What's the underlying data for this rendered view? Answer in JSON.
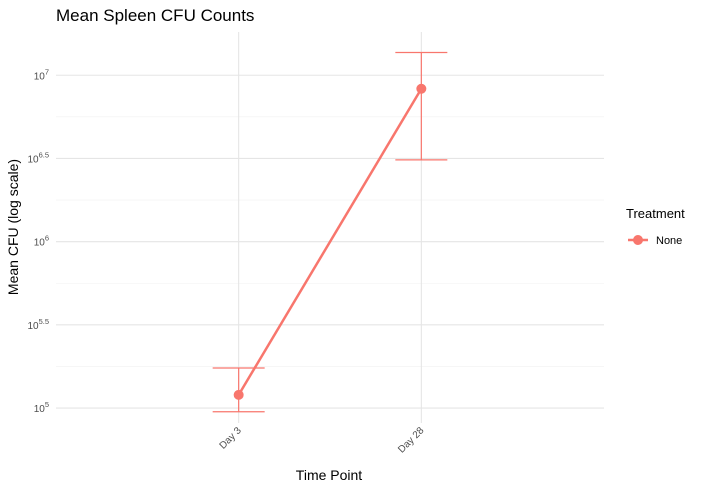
{
  "chart_data": {
    "type": "line",
    "title": "Mean Spleen CFU Counts",
    "xlabel": "Time Point",
    "ylabel": "Mean CFU (log scale)",
    "y_scale": "log10",
    "categories": [
      "Day 3",
      "Day 28"
    ],
    "series": [
      {
        "name": "None",
        "color": "#F8766D",
        "values": [
          120000,
          8300000
        ],
        "error_low": [
          95000,
          3100000
        ],
        "error_high": [
          174000,
          13700000
        ]
      }
    ],
    "ylim_log10": [
      4.91,
      7.26
    ],
    "y_ticks": [
      {
        "base": "10",
        "exp": "5",
        "value": 100000
      },
      {
        "base": "10",
        "exp": "5.5",
        "value": 316228
      },
      {
        "base": "10",
        "exp": "6",
        "value": 1000000
      },
      {
        "base": "10",
        "exp": "6.5",
        "value": 3162278
      },
      {
        "base": "10",
        "exp": "7",
        "value": 10000000
      }
    ],
    "grid": true,
    "legend": {
      "title": "Treatment",
      "position": "right",
      "entries": [
        "None"
      ]
    }
  }
}
